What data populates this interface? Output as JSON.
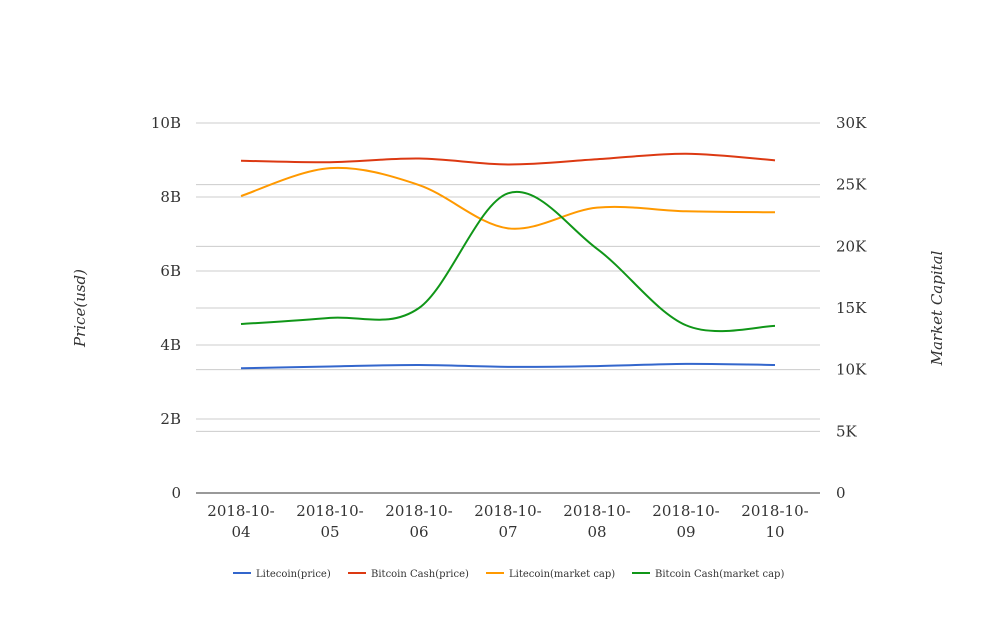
{
  "chart_data": {
    "type": "line",
    "categories": [
      "2018-10-04",
      "2018-10-05",
      "2018-10-06",
      "2018-10-07",
      "2018-10-08",
      "2018-10-09",
      "2018-10-10"
    ],
    "category_labels": [
      [
        "2018-10-",
        "04"
      ],
      [
        "2018-10-",
        "05"
      ],
      [
        "2018-10-",
        "06"
      ],
      [
        "2018-10-",
        "07"
      ],
      [
        "2018-10-",
        "08"
      ],
      [
        "2018-10-",
        "09"
      ],
      [
        "2018-10-",
        "10"
      ]
    ],
    "ylabel_left": "Price(usd)",
    "ylabel_right": "Market Capital",
    "ylim_left": [
      0,
      10000000000
    ],
    "ylim_right": [
      0,
      30000
    ],
    "left_ticks": [
      {
        "value": 0,
        "label": "0"
      },
      {
        "value": 2000000000,
        "label": "2B"
      },
      {
        "value": 4000000000,
        "label": "4B"
      },
      {
        "value": 6000000000,
        "label": "6B"
      },
      {
        "value": 8000000000,
        "label": "8B"
      },
      {
        "value": 10000000000,
        "label": "10B"
      }
    ],
    "right_ticks": [
      {
        "value": 0,
        "label": "0"
      },
      {
        "value": 5000,
        "label": "5K"
      },
      {
        "value": 10000,
        "label": "10K"
      },
      {
        "value": 15000,
        "label": "15K"
      },
      {
        "value": 20000,
        "label": "20K"
      },
      {
        "value": 25000,
        "label": "25K"
      },
      {
        "value": 30000,
        "label": "30K"
      }
    ],
    "grid": true,
    "legend_position": "bottom",
    "series": [
      {
        "name": "Litecoin(price)",
        "axis": "left",
        "color": "#3366cc",
        "values": [
          3370000000,
          3420000000,
          3460000000,
          3410000000,
          3430000000,
          3490000000,
          3460000000
        ]
      },
      {
        "name": "Bitcoin Cash(price)",
        "axis": "left",
        "color": "#dc3912",
        "values": [
          8980000000,
          8940000000,
          9040000000,
          8880000000,
          9020000000,
          9170000000,
          8990000000
        ]
      },
      {
        "name": "Litecoin(market cap)",
        "axis": "right",
        "color": "#ff9900",
        "values": [
          24080,
          26340,
          24970,
          21460,
          23140,
          22840,
          22760
        ]
      },
      {
        "name": "Bitcoin Cash(market cap)",
        "axis": "right",
        "color": "#109618",
        "values": [
          13700,
          14200,
          15000,
          24300,
          19800,
          13600,
          13550
        ]
      }
    ]
  }
}
